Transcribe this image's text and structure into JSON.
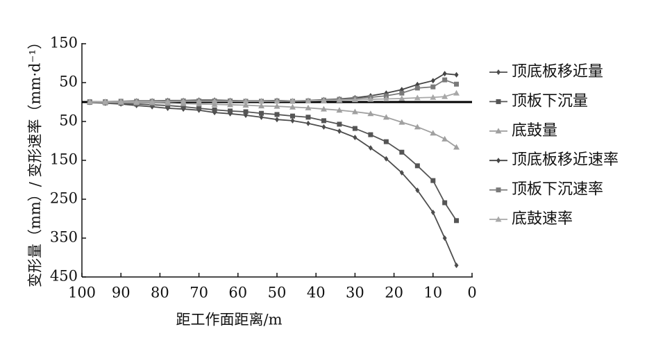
{
  "chart_data": {
    "type": "line",
    "xlabel": "距工作面距离/m",
    "ylabel": "变形量（mm）/ 变形速率（mm·d⁻¹）",
    "x": [
      98,
      94,
      90,
      86,
      82,
      78,
      74,
      70,
      66,
      62,
      58,
      54,
      50,
      46,
      42,
      38,
      34,
      30,
      26,
      22,
      18,
      14,
      10,
      7,
      4
    ],
    "xlim": [
      100,
      0
    ],
    "xticks": [
      100,
      90,
      80,
      70,
      60,
      50,
      40,
      30,
      20,
      10,
      0
    ],
    "ylim": [
      -450,
      150
    ],
    "yticks": [
      150,
      50,
      {
        "value": -50,
        "label": "50"
      },
      {
        "value": -150,
        "label": "150"
      },
      {
        "value": -250,
        "label": "250"
      },
      {
        "value": -350,
        "label": "350"
      },
      {
        "value": -450,
        "label": "450"
      }
    ],
    "series": [
      {
        "name": "顶底板移近量",
        "color": "#4d4d4d",
        "marker": "diamond",
        "values": [
          -1,
          -3,
          -5,
          -9,
          -12,
          -16,
          -18,
          -21,
          -27,
          -30,
          -34,
          -39,
          -45,
          -48,
          -55,
          -64,
          -75,
          -91,
          -118,
          -146,
          -182,
          -227,
          -284,
          -350,
          -420
        ]
      },
      {
        "name": "顶板下沉量",
        "color": "#555555",
        "marker": "square",
        "values": [
          -1,
          -2,
          -3,
          -5,
          -7,
          -9,
          -12,
          -16,
          -20,
          -23,
          -25,
          -29,
          -32,
          -36,
          -39,
          -48,
          -57,
          -68,
          -84,
          -102,
          -129,
          -164,
          -202,
          -259,
          -305
        ]
      },
      {
        "name": "底鼓量",
        "color": "#a0a0a0",
        "marker": "triangle",
        "values": [
          0,
          -1,
          -1,
          -2,
          -2,
          -3,
          -4,
          -5,
          -6,
          -7,
          -8,
          -10,
          -11,
          -13,
          -15,
          -18,
          -21,
          -25,
          -30,
          -39,
          -52,
          -64,
          -80,
          -95,
          -116
        ]
      },
      {
        "name": "顶底板移近速率",
        "color": "#444444",
        "marker": "diamond",
        "values": [
          1,
          1,
          2,
          3,
          3,
          4,
          4,
          5,
          5,
          4,
          3,
          3,
          4,
          3,
          4,
          6,
          8,
          11,
          16,
          23,
          32,
          45,
          55,
          73,
          70
        ]
      },
      {
        "name": "顶板下沉速率",
        "color": "#7a7a7a",
        "marker": "square",
        "values": [
          1,
          1,
          2,
          2,
          2,
          3,
          3,
          3,
          3,
          3,
          2,
          2,
          3,
          2,
          3,
          5,
          7,
          9,
          12,
          16,
          23,
          36,
          39,
          57,
          46
        ]
      },
      {
        "name": "底鼓速率",
        "color": "#a8a8a8",
        "marker": "triangle",
        "values": [
          0,
          1,
          1,
          1,
          1,
          1,
          2,
          2,
          2,
          2,
          2,
          2,
          2,
          3,
          3,
          4,
          5,
          6,
          7,
          8,
          9,
          11,
          12,
          14,
          23
        ]
      }
    ]
  }
}
